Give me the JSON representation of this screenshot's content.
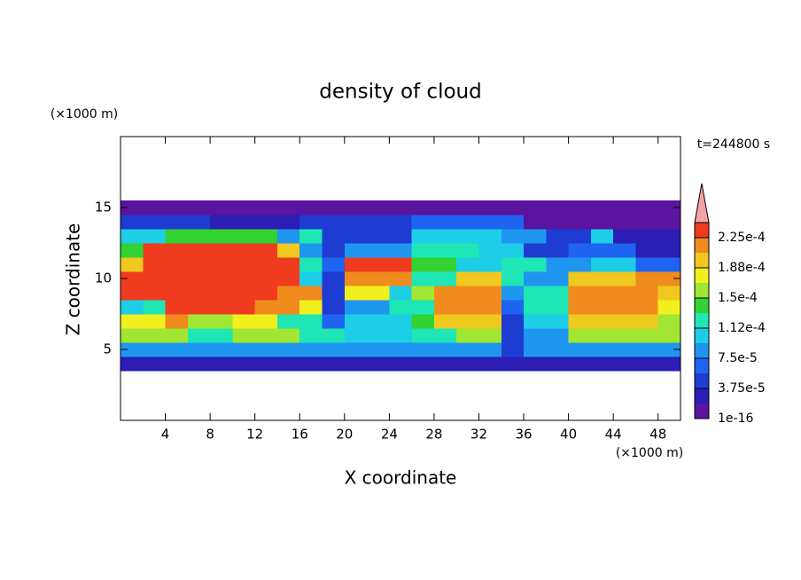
{
  "chart_data": {
    "type": "contour",
    "title": "density of cloud",
    "xlabel": "X coordinate",
    "ylabel": "Z coordinate",
    "x_unit": "(×1000 m)",
    "y_unit": "(×1000 m)",
    "time_label": "t=244800 s",
    "xlim": [
      0,
      50
    ],
    "ylim": [
      0,
      20
    ],
    "xticks": [
      4,
      8,
      12,
      16,
      20,
      24,
      28,
      32,
      36,
      40,
      44,
      48
    ],
    "yticks": [
      5,
      10,
      15
    ],
    "x": [
      1,
      3,
      5,
      7,
      9,
      11,
      13,
      15,
      17,
      19,
      21,
      23,
      25,
      27,
      29,
      31,
      33,
      35,
      37,
      39,
      41,
      43,
      45,
      47,
      49
    ],
    "z": [
      4,
      5,
      6,
      7,
      8,
      9,
      10,
      11,
      12,
      13,
      14,
      15
    ],
    "values": [
      [
        3e-05,
        3e-05,
        3e-05,
        3e-05,
        3e-05,
        3e-05,
        3e-05,
        3e-05,
        3e-05,
        3e-05,
        3e-05,
        3e-05,
        3e-05,
        3e-05,
        3e-05,
        3e-05,
        3e-05,
        3e-05,
        3e-05,
        3e-05,
        3e-05,
        3e-05,
        3e-05,
        3e-05,
        3e-05
      ],
      [
        8e-05,
        8e-05,
        8e-05,
        8e-05,
        8e-05,
        8e-05,
        8e-05,
        8e-05,
        8e-05,
        8e-05,
        8e-05,
        8e-05,
        8e-05,
        8e-05,
        8e-05,
        8e-05,
        8e-05,
        5e-05,
        8e-05,
        8e-05,
        8e-05,
        8e-05,
        8e-05,
        8e-05,
        8e-05
      ],
      [
        0.00015,
        0.00015,
        0.00015,
        0.00013,
        0.00013,
        0.00015,
        0.00015,
        0.00015,
        0.00012,
        0.00012,
        0.0001,
        0.0001,
        0.0001,
        0.00013,
        0.00013,
        0.00015,
        0.00015,
        5e-05,
        9e-05,
        9e-05,
        0.00015,
        0.00015,
        0.00015,
        0.00015,
        0.00015
      ],
      [
        0.00018,
        0.00018,
        0.00022,
        0.00015,
        0.00015,
        0.00018,
        0.00018,
        0.00013,
        0.00013,
        6e-05,
        0.0001,
        0.0001,
        0.0001,
        0.00014,
        0.00019,
        0.00019,
        0.00019,
        5e-05,
        0.0001,
        0.0001,
        0.0002,
        0.0002,
        0.0002,
        0.0002,
        0.00016
      ],
      [
        0.0001,
        0.00013,
        0.00023,
        0.00023,
        0.00023,
        0.00023,
        0.00022,
        0.00022,
        0.00018,
        5e-05,
        9e-05,
        9e-05,
        0.00012,
        0.00012,
        0.00021,
        0.00021,
        0.00021,
        6e-05,
        0.00012,
        0.00012,
        0.00022,
        0.00022,
        0.00022,
        0.00022,
        0.00018
      ],
      [
        0.00023,
        0.00024,
        0.00024,
        0.00024,
        0.00024,
        0.00024,
        0.00024,
        0.00022,
        0.00022,
        4e-05,
        0.00018,
        0.00018,
        0.0001,
        0.00015,
        0.00022,
        0.00022,
        0.00022,
        9e-05,
        0.00012,
        0.00012,
        0.00022,
        0.00022,
        0.00022,
        0.00022,
        0.00019
      ],
      [
        0.00024,
        0.00024,
        0.00024,
        0.00024,
        0.00024,
        0.00024,
        0.00024,
        0.00024,
        0.0001,
        5e-05,
        0.00022,
        0.00022,
        0.00022,
        0.00012,
        0.00012,
        0.0002,
        0.0002,
        0.00012,
        9e-05,
        9e-05,
        0.0002,
        0.0002,
        0.0002,
        0.00022,
        0.00022
      ],
      [
        0.0002,
        0.00024,
        0.00024,
        0.00024,
        0.00024,
        0.00024,
        0.00024,
        0.00024,
        0.00012,
        6e-05,
        0.00023,
        0.00023,
        0.00023,
        0.00014,
        0.00014,
        0.0001,
        0.0001,
        0.00012,
        0.00012,
        8e-05,
        8e-05,
        0.0001,
        0.0001,
        6e-05,
        6e-05
      ],
      [
        0.00014,
        0.00024,
        0.00024,
        0.00024,
        0.00024,
        0.00024,
        0.00024,
        0.0002,
        9e-05,
        5e-05,
        9e-05,
        9e-05,
        9e-05,
        0.00013,
        0.00013,
        0.00013,
        0.0001,
        0.0001,
        5e-05,
        5e-05,
        6e-05,
        6e-05,
        6e-05,
        3e-05,
        3e-05
      ],
      [
        0.0001,
        0.0001,
        0.00014,
        0.00014,
        0.00014,
        0.00014,
        0.00014,
        9e-05,
        0.00012,
        5e-05,
        5e-05,
        5e-05,
        5e-05,
        0.0001,
        0.0001,
        0.0001,
        0.0001,
        9e-05,
        9e-05,
        5e-05,
        5e-05,
        0.0001,
        2e-05,
        2e-05,
        2e-05
      ],
      [
        5e-05,
        5e-05,
        5e-05,
        5e-05,
        3e-05,
        3e-05,
        3e-05,
        3e-05,
        4e-05,
        4e-05,
        4e-05,
        4e-05,
        4e-05,
        6e-05,
        6e-05,
        6e-05,
        6e-05,
        6e-05,
        1.5e-05,
        1.5e-05,
        1.5e-05,
        1.5e-05,
        1.5e-05,
        1.5e-05,
        1.5e-05
      ],
      [
        1e-05,
        1e-05,
        1e-05,
        1e-05,
        1e-05,
        1e-05,
        1e-05,
        1e-05,
        1e-05,
        1e-05,
        1e-05,
        1e-05,
        1e-05,
        1e-05,
        1e-05,
        1e-05,
        1e-05,
        1e-05,
        1e-05,
        1e-05,
        1e-05,
        1e-05,
        1e-05,
        1e-05,
        1e-05
      ]
    ],
    "colorbar": {
      "ticks": [
        1e-16,
        {
          "value": 3.75e-05,
          "label": "3.75e-5"
        },
        {
          "value": 7.5e-05,
          "label": "7.5e-5"
        },
        {
          "value": 0.000112,
          "label": "1.12e-4"
        },
        {
          "value": 0.00015,
          "label": "1.5e-4"
        },
        {
          "value": 0.000188,
          "label": "1.88e-4"
        },
        {
          "value": 0.000225,
          "label": "2.25e-4"
        }
      ],
      "colors": [
        "#5a14a0",
        "#2a1eb4",
        "#1e3cd2",
        "#1e64f0",
        "#1e96f0",
        "#1ecde6",
        "#1ee6b4",
        "#32d232",
        "#a0e632",
        "#f0f01e",
        "#f0c81e",
        "#f08c1e",
        "#f03c1e"
      ],
      "extend_color": "#f4a4a4"
    }
  }
}
